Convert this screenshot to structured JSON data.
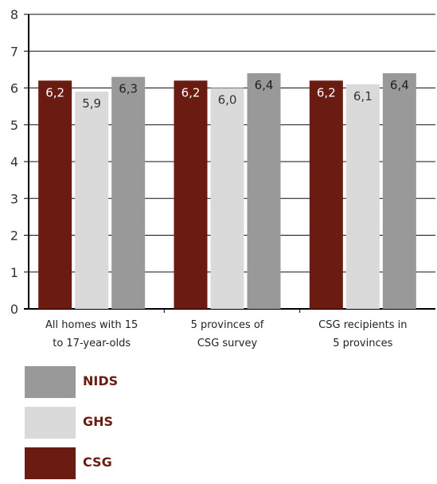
{
  "chart_data": {
    "type": "bar",
    "categories": [
      [
        "All homes with 15",
        "to 17-year-olds"
      ],
      [
        "5 provinces of",
        "CSG survey"
      ],
      [
        "CSG recipients in",
        "5 provinces"
      ]
    ],
    "series": [
      {
        "name": "CSG",
        "values": [
          6.2,
          6.2,
          6.2
        ],
        "labels": [
          "6,2",
          "6,2",
          "6,2"
        ],
        "color": "#6b1c12",
        "label_color": "#ffffff"
      },
      {
        "name": "GHS",
        "values": [
          5.9,
          6.0,
          6.1
        ],
        "labels": [
          "5,9",
          "6,0",
          "6,1"
        ],
        "color": "#dadada",
        "label_color": "#333333"
      },
      {
        "name": "NIDS",
        "values": [
          6.3,
          6.4,
          6.4
        ],
        "labels": [
          "6,3",
          "6,4",
          "6,4"
        ],
        "color": "#999999",
        "label_color": "#222222"
      }
    ],
    "ylim": [
      0,
      8
    ],
    "yticks": [
      "0",
      "1",
      "2",
      "3",
      "4",
      "5",
      "6",
      "7",
      "8"
    ],
    "grid": true,
    "legend_position": "bottom-left",
    "legend_order": [
      "NIDS",
      "GHS",
      "CSG"
    ]
  },
  "colors": {
    "legend_text": "#6b1c12",
    "grid": "#111111"
  }
}
